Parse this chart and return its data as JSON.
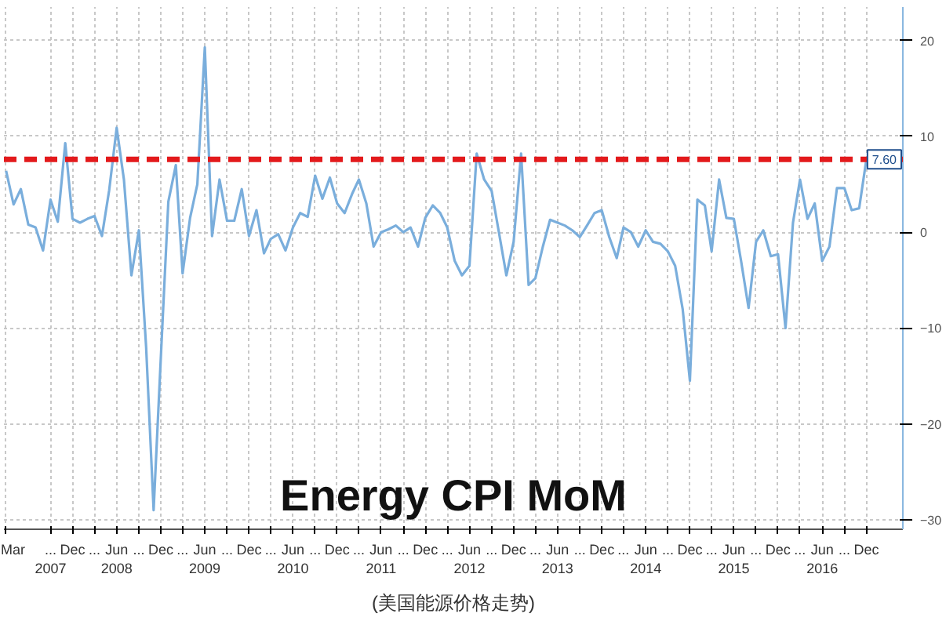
{
  "chart_data": {
    "type": "line",
    "title": "Energy CPI MoM",
    "annotations": [
      "(美国能源价格走势)"
    ],
    "x": [
      "2007-03",
      "2007-04",
      "2007-05",
      "2007-06",
      "2007-07",
      "2007-08",
      "2007-09",
      "2007-10",
      "2007-11",
      "2007-12",
      "2008-01",
      "2008-02",
      "2008-03",
      "2008-04",
      "2008-05",
      "2008-06",
      "2008-07",
      "2008-08",
      "2008-09",
      "2008-10",
      "2008-11",
      "2008-12",
      "2009-01",
      "2009-02",
      "2009-03",
      "2009-04",
      "2009-05",
      "2009-06",
      "2009-07",
      "2009-08",
      "2009-09",
      "2009-10",
      "2009-11",
      "2009-12",
      "2010-01",
      "2010-02",
      "2010-03",
      "2010-04",
      "2010-05",
      "2010-06",
      "2010-07",
      "2010-08",
      "2010-09",
      "2010-10",
      "2010-11",
      "2010-12",
      "2011-01",
      "2011-02",
      "2011-03",
      "2011-04",
      "2011-05",
      "2011-06",
      "2011-07",
      "2011-08",
      "2011-09",
      "2011-10",
      "2011-11",
      "2011-12",
      "2012-01",
      "2012-02",
      "2012-03",
      "2012-04",
      "2012-05",
      "2012-06",
      "2012-07",
      "2012-08",
      "2012-09",
      "2012-10",
      "2012-11",
      "2012-12",
      "2013-01",
      "2013-02",
      "2013-03",
      "2013-04",
      "2013-05",
      "2013-06",
      "2013-07",
      "2013-08",
      "2013-09",
      "2013-10",
      "2013-11",
      "2013-12",
      "2014-01",
      "2014-02",
      "2014-03",
      "2014-04",
      "2014-05",
      "2014-06",
      "2014-07",
      "2014-08",
      "2014-09",
      "2014-10",
      "2014-11",
      "2014-12",
      "2015-01",
      "2015-02",
      "2015-03",
      "2015-04",
      "2015-05",
      "2015-06",
      "2015-07",
      "2015-08",
      "2015-09",
      "2015-10",
      "2015-11",
      "2015-12",
      "2016-01",
      "2016-02",
      "2016-03",
      "2016-04",
      "2016-05",
      "2016-06",
      "2016-07",
      "2016-08",
      "2016-09",
      "2016-10",
      "2016-11",
      "2016-12"
    ],
    "series": [
      {
        "color": "#7aaedc",
        "values": [
          6.4,
          2.9,
          4.5,
          0.8,
          0.5,
          -1.9,
          3.4,
          1.1,
          9.3,
          1.4,
          1.0,
          1.4,
          1.7,
          -0.4,
          4.4,
          10.9,
          5.5,
          -4.5,
          0.2,
          -12,
          -29,
          -13,
          3.2,
          7.0,
          -4.3,
          1.5,
          5.0,
          19.3,
          -0.4,
          5.5,
          1.2,
          1.2,
          4.5,
          -0.4,
          2.3,
          -2.2,
          -0.7,
          -0.2,
          -1.9,
          0.5,
          2.0,
          1.6,
          5.9,
          3.5,
          5.7,
          3,
          2.0,
          4,
          5.5,
          3,
          -1.5,
          0,
          0.3,
          0.7,
          0,
          0.5,
          -1.5,
          1.5,
          2.8,
          2,
          0.5,
          -3,
          -4.5,
          -3.5,
          8.2,
          5.5,
          4.3,
          0,
          -4.5,
          -1,
          8.2,
          -5.5,
          -4.8,
          -1.5,
          1.3,
          1.0,
          0.7,
          0.2,
          -0.5,
          0.7,
          2.0,
          2.3,
          -0.5,
          -2.7,
          0.5,
          0,
          -1.5,
          0.2,
          -1,
          -1.2,
          -2,
          -3.5,
          -8,
          -15.5,
          3.4,
          2.8,
          -2,
          5.5,
          1.5,
          1.4,
          -3,
          -7.9,
          -1,
          0.2,
          -2.5,
          -2.3,
          -10,
          1,
          5.5,
          1.4,
          3,
          -3,
          -1.5,
          4.6,
          4.6,
          2.3,
          2.5,
          7.6
        ]
      }
    ],
    "xlim": [
      "2007-02-20",
      "2017-05-01"
    ],
    "xticks": [
      {
        "value": "2007-03",
        "label": "Mar"
      },
      {
        "value": "2007-09",
        "label": "...\n2007"
      },
      {
        "value": "2007-12",
        "label": "Dec"
      },
      {
        "value": "2008-03",
        "label": "..."
      },
      {
        "value": "2008-06",
        "label": "Jun\n2008"
      },
      {
        "value": "2008-09",
        "label": "..."
      },
      {
        "value": "2008-12",
        "label": "Dec"
      },
      {
        "value": "2009-03",
        "label": "..."
      },
      {
        "value": "2009-06",
        "label": "Jun\n2009"
      },
      {
        "value": "2009-09",
        "label": "..."
      },
      {
        "value": "2009-12",
        "label": "Dec"
      },
      {
        "value": "2010-03",
        "label": "..."
      },
      {
        "value": "2010-06",
        "label": "Jun\n2010"
      },
      {
        "value": "2010-09",
        "label": "..."
      },
      {
        "value": "2010-12",
        "label": "Dec"
      },
      {
        "value": "2011-03",
        "label": "..."
      },
      {
        "value": "2011-06",
        "label": "Jun\n2011"
      },
      {
        "value": "2011-09",
        "label": "..."
      },
      {
        "value": "2011-12",
        "label": "Dec"
      },
      {
        "value": "2012-03",
        "label": "..."
      },
      {
        "value": "2012-06",
        "label": "Jun\n2012"
      },
      {
        "value": "2012-09",
        "label": "..."
      },
      {
        "value": "2012-12",
        "label": "Dec"
      },
      {
        "value": "2013-03",
        "label": "..."
      },
      {
        "value": "2013-06",
        "label": "Jun\n2013"
      },
      {
        "value": "2013-09",
        "label": "..."
      },
      {
        "value": "2013-12",
        "label": "Dec"
      },
      {
        "value": "2014-03",
        "label": "..."
      },
      {
        "value": "2014-06",
        "label": "Jun\n2014"
      },
      {
        "value": "2014-09",
        "label": "..."
      },
      {
        "value": "2014-12",
        "label": "Dec"
      },
      {
        "value": "2015-03",
        "label": "..."
      },
      {
        "value": "2015-06",
        "label": "Jun\n2015"
      },
      {
        "value": "2015-09",
        "label": "..."
      },
      {
        "value": "2015-12",
        "label": "Dec"
      },
      {
        "value": "2016-03",
        "label": "..."
      },
      {
        "value": "2016-06",
        "label": "Jun\n2016"
      },
      {
        "value": "2016-09",
        "label": "..."
      },
      {
        "value": "2016-12",
        "label": "Dec"
      }
    ],
    "ylim": [
      -31,
      23.5
    ],
    "yticks": [
      -30,
      -20,
      -10,
      0,
      10,
      20
    ],
    "ref_lines": [
      {
        "axis": "y",
        "value": 7.6,
        "label": "7.60",
        "color": "#e31a1c",
        "line_style": "dashed"
      }
    ],
    "grid": true
  }
}
